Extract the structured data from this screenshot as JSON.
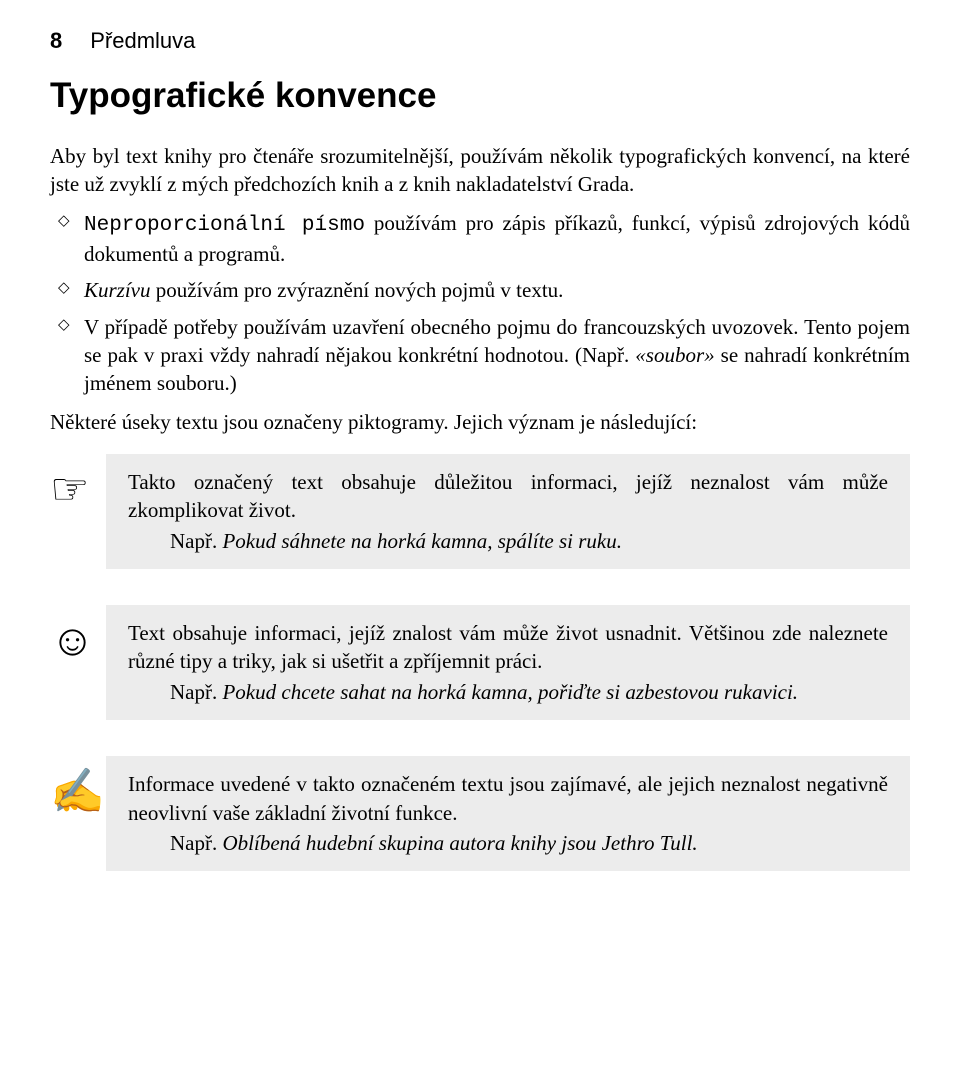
{
  "header": {
    "page_number": "8",
    "chapter": "Předmluva"
  },
  "title": "Typografické konvence",
  "intro": "Aby byl text knihy pro čtenáře srozumitelnější, používám několik typografických konvencí, na které jste už zvyklí z mých předchozích knih a z knih nakladatelství Grada.",
  "bullet1": {
    "mono": "Neproporcionální písmo",
    "rest": " používám pro zápis příkazů, funkcí, výpisů zdrojových kódů dokumentů a programů."
  },
  "bullet2": {
    "italic": "Kurzívu",
    "rest": " používám pro zvýraznění nových pojmů v textu."
  },
  "bullet3": {
    "text1": "V případě potřeby používám uzavření obecného pojmu do francouzských uvozovek. Tento pojem se pak v praxi vždy nahradí nějakou konkrétní hodnotou. (Např. ",
    "italic": "«soubor»",
    "text2": " se nahradí konkrétním jménem souboru.)"
  },
  "outro": "Některé úseky textu jsou označeny piktogramy. Jejich význam je následující:",
  "callout1": {
    "icon": "☞",
    "text": "Takto označený text obsahuje důležitou informaci, jejíž neznalost vám může zkomplikovat život.",
    "example_label": "Např. ",
    "example_text": "Pokud sáhnete na horká kamna, spálíte si ruku."
  },
  "callout2": {
    "icon": "☺",
    "text": "Text obsahuje informaci, jejíž znalost vám může život usnadnit. Většinou zde naleznete různé tipy a triky, jak si ušetřit a zpříjemnit práci.",
    "example_label": "Např. ",
    "example_text": "Pokud chcete sahat na horká kamna, pořiďte si azbestovou rukavici."
  },
  "callout3": {
    "icon": "✍",
    "text": "Informace uvedené v takto označeném textu jsou zajímavé, ale jejich neznalost negativně neovlivní vaše základní životní funkce.",
    "example_label": "Např. ",
    "example_text": "Oblíbená hudební skupina autora knihy jsou Jethro Tull."
  }
}
